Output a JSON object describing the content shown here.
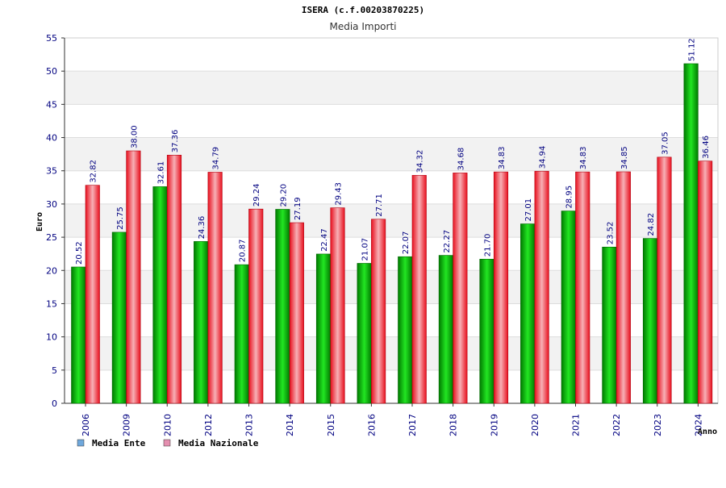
{
  "chart_data": {
    "type": "bar",
    "title": "ISERA (c.f.00203870225)",
    "subtitle": "Media Importi",
    "xlabel": "Anno",
    "ylabel": "Euro",
    "ylim": [
      0,
      55
    ],
    "yticks": [
      0,
      5,
      10,
      15,
      20,
      25,
      30,
      35,
      40,
      45,
      50,
      55
    ],
    "grid": true,
    "legend_position": "bottom-left",
    "categories": [
      "2006",
      "2009",
      "2010",
      "2012",
      "2013",
      "2014",
      "2015",
      "2016",
      "2017",
      "2018",
      "2019",
      "2020",
      "2021",
      "2022",
      "2023",
      "2024"
    ],
    "series": [
      {
        "name": "Media Ente",
        "legend_color": "#6fa8dc",
        "bar_color": "#00b000",
        "values": [
          20.52,
          25.75,
          32.61,
          24.36,
          20.87,
          29.2,
          22.47,
          21.07,
          22.07,
          22.27,
          21.7,
          27.01,
          28.95,
          23.52,
          24.82,
          51.12
        ],
        "labels": [
          "20.52",
          "25.75",
          "32.61",
          "24.36",
          "20.87",
          "29.20",
          "22.47",
          "21.07",
          "22.07",
          "22.27",
          "21.70",
          "27.01",
          "28.95",
          "23.52",
          "24.82",
          "51.12"
        ]
      },
      {
        "name": "Media Nazionale",
        "legend_color": "#e58fb0",
        "bar_color": "#e8101e",
        "values": [
          32.82,
          38.0,
          37.36,
          34.79,
          29.24,
          27.19,
          29.43,
          27.71,
          34.32,
          34.68,
          34.83,
          34.94,
          34.83,
          34.85,
          37.05,
          36.46
        ],
        "labels": [
          "32.82",
          "38.00",
          "37.36",
          "34.79",
          "29.24",
          "27.19",
          "29.43",
          "27.71",
          "34.32",
          "34.68",
          "34.83",
          "34.94",
          "34.83",
          "34.85",
          "37.05",
          "36.46"
        ]
      }
    ]
  }
}
